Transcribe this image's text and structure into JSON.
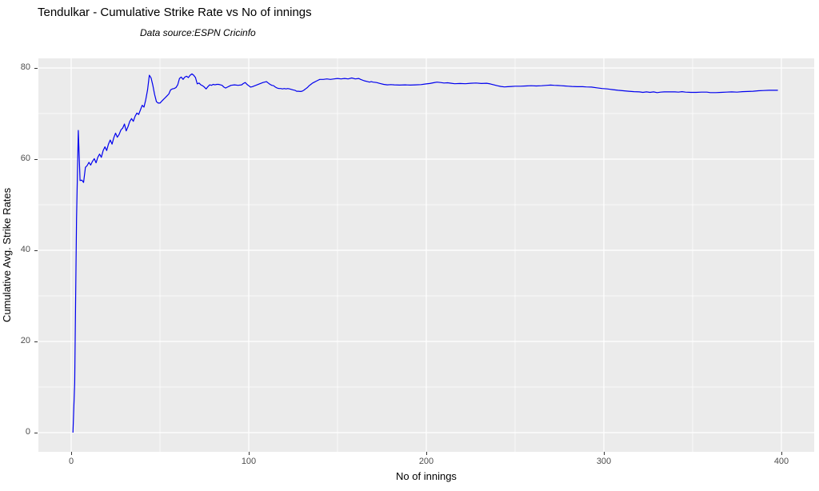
{
  "chart_data": {
    "type": "line",
    "title": "Tendulkar - Cumulative Strike Rate vs No of innings",
    "subtitle": "Data source:ESPN Cricinfo",
    "xlabel": "No of innings",
    "ylabel": "Cumulative Avg. Strike Rates",
    "xlim": [
      0,
      400
    ],
    "ylim": [
      0,
      80
    ],
    "x_ticks": [
      0,
      100,
      200,
      300,
      400
    ],
    "y_ticks": [
      0,
      20,
      40,
      60,
      80
    ],
    "x_minor_ticks": [
      50,
      150,
      250,
      350
    ],
    "y_minor_ticks": [
      10,
      30,
      50,
      70
    ],
    "grid": "on",
    "legend": "none",
    "colors": {
      "line": "#0000EE",
      "panel_background": "#EBEBEB",
      "gridline": "#FFFFFF",
      "tick_text": "#4D4D4D",
      "axis_title_text": "#000000",
      "title_text": "#000000"
    },
    "series": [
      {
        "name": "cumulative-strike-rate",
        "points": [
          [
            1,
            0
          ],
          [
            2,
            11
          ],
          [
            3,
            47
          ],
          [
            4,
            66.3
          ],
          [
            5,
            55.3
          ],
          [
            6,
            55.4
          ],
          [
            7,
            54.9
          ],
          [
            8,
            58.2
          ],
          [
            9,
            58.6
          ],
          [
            10,
            59.3
          ],
          [
            11,
            58.7
          ],
          [
            12,
            59.5
          ],
          [
            13,
            60.1
          ],
          [
            14,
            59.2
          ],
          [
            15,
            60.4
          ],
          [
            16,
            61.1
          ],
          [
            17,
            60.4
          ],
          [
            18,
            61.9
          ],
          [
            19,
            62.7
          ],
          [
            20,
            61.9
          ],
          [
            21,
            63.3
          ],
          [
            22,
            64.2
          ],
          [
            23,
            63.3
          ],
          [
            24,
            64.7
          ],
          [
            25,
            65.7
          ],
          [
            26,
            64.8
          ],
          [
            27,
            65.4
          ],
          [
            28,
            66.4
          ],
          [
            29,
            66.8
          ],
          [
            30,
            67.7
          ],
          [
            31,
            66.2
          ],
          [
            32,
            67.1
          ],
          [
            33,
            68.3
          ],
          [
            34,
            68.9
          ],
          [
            35,
            68.3
          ],
          [
            36,
            69.4
          ],
          [
            37,
            70.1
          ],
          [
            38,
            69.8
          ],
          [
            39,
            70.8
          ],
          [
            40,
            71.8
          ],
          [
            41,
            71.4
          ],
          [
            42,
            73.0
          ],
          [
            43,
            75.2
          ],
          [
            44,
            78.4
          ],
          [
            45,
            77.8
          ],
          [
            46,
            76.2
          ],
          [
            47,
            74.2
          ],
          [
            48,
            72.6
          ],
          [
            49,
            72.3
          ],
          [
            50,
            72.3
          ],
          [
            51,
            72.7
          ],
          [
            52,
            73.1
          ],
          [
            53,
            73.5
          ],
          [
            54,
            73.9
          ],
          [
            55,
            74.3
          ],
          [
            56,
            75.2
          ],
          [
            57,
            75.4
          ],
          [
            58,
            75.5
          ],
          [
            59,
            75.7
          ],
          [
            60,
            76.3
          ],
          [
            61,
            77.7
          ],
          [
            62,
            78.0
          ],
          [
            63,
            77.5
          ],
          [
            64,
            78.0
          ],
          [
            65,
            78.2
          ],
          [
            66,
            77.9
          ],
          [
            67,
            78.4
          ],
          [
            68,
            78.7
          ],
          [
            69,
            78.4
          ],
          [
            70,
            77.9
          ],
          [
            71,
            76.5
          ],
          [
            72,
            76.7
          ],
          [
            73,
            76.3
          ],
          [
            74,
            76.1
          ],
          [
            75,
            75.8
          ],
          [
            76,
            75.4
          ],
          [
            77,
            75.9
          ],
          [
            78,
            76.3
          ],
          [
            79,
            76.2
          ],
          [
            80,
            76.4
          ],
          [
            81,
            76.3
          ],
          [
            82,
            76.4
          ],
          [
            83,
            76.4
          ],
          [
            84,
            76.3
          ],
          [
            85,
            76.2
          ],
          [
            86,
            75.8
          ],
          [
            87,
            75.6
          ],
          [
            88,
            75.8
          ],
          [
            89,
            76.0
          ],
          [
            90,
            76.2
          ],
          [
            92,
            76.3
          ],
          [
            94,
            76.2
          ],
          [
            96,
            76.3
          ],
          [
            97,
            76.6
          ],
          [
            98,
            76.8
          ],
          [
            99,
            76.4
          ],
          [
            100,
            76.1
          ],
          [
            101,
            75.8
          ],
          [
            102,
            75.9
          ],
          [
            104,
            76.2
          ],
          [
            106,
            76.5
          ],
          [
            108,
            76.8
          ],
          [
            110,
            77.0
          ],
          [
            111,
            76.7
          ],
          [
            112,
            76.4
          ],
          [
            113,
            76.2
          ],
          [
            114,
            76.1
          ],
          [
            115,
            75.8
          ],
          [
            116,
            75.6
          ],
          [
            117,
            75.5
          ],
          [
            118,
            75.5
          ],
          [
            119,
            75.4
          ],
          [
            120,
            75.5
          ],
          [
            121,
            75.4
          ],
          [
            122,
            75.5
          ],
          [
            123,
            75.4
          ],
          [
            124,
            75.3
          ],
          [
            125,
            75.2
          ],
          [
            126,
            75.1
          ],
          [
            127,
            74.9
          ],
          [
            128,
            74.9
          ],
          [
            129,
            74.85
          ],
          [
            130,
            74.9
          ],
          [
            131,
            75.1
          ],
          [
            132,
            75.4
          ],
          [
            133,
            75.7
          ],
          [
            134,
            76.1
          ],
          [
            135,
            76.4
          ],
          [
            136,
            76.7
          ],
          [
            137,
            76.9
          ],
          [
            138,
            77.1
          ],
          [
            139,
            77.3
          ],
          [
            140,
            77.5
          ],
          [
            142,
            77.5
          ],
          [
            144,
            77.6
          ],
          [
            146,
            77.5
          ],
          [
            148,
            77.6
          ],
          [
            150,
            77.7
          ],
          [
            152,
            77.6
          ],
          [
            154,
            77.7
          ],
          [
            156,
            77.6
          ],
          [
            158,
            77.8
          ],
          [
            160,
            77.6
          ],
          [
            162,
            77.7
          ],
          [
            163,
            77.5
          ],
          [
            165,
            77.2
          ],
          [
            167,
            77.0
          ],
          [
            168,
            76.9
          ],
          [
            169,
            77.0
          ],
          [
            170,
            76.9
          ],
          [
            172,
            76.8
          ],
          [
            174,
            76.6
          ],
          [
            176,
            76.4
          ],
          [
            178,
            76.3
          ],
          [
            180,
            76.35
          ],
          [
            182,
            76.3
          ],
          [
            185,
            76.25
          ],
          [
            188,
            76.3
          ],
          [
            191,
            76.25
          ],
          [
            194,
            76.3
          ],
          [
            197,
            76.35
          ],
          [
            200,
            76.5
          ],
          [
            202,
            76.6
          ],
          [
            204,
            76.75
          ],
          [
            206,
            76.9
          ],
          [
            208,
            76.8
          ],
          [
            210,
            76.7
          ],
          [
            212,
            76.75
          ],
          [
            214,
            76.65
          ],
          [
            216,
            76.55
          ],
          [
            219,
            76.6
          ],
          [
            222,
            76.55
          ],
          [
            225,
            76.65
          ],
          [
            228,
            76.7
          ],
          [
            231,
            76.6
          ],
          [
            234,
            76.65
          ],
          [
            236,
            76.5
          ],
          [
            238,
            76.3
          ],
          [
            240,
            76.1
          ],
          [
            242,
            75.95
          ],
          [
            244,
            75.85
          ],
          [
            246,
            75.9
          ],
          [
            248,
            75.95
          ],
          [
            250,
            76.0
          ],
          [
            253,
            76.0
          ],
          [
            256,
            76.05
          ],
          [
            259,
            76.1
          ],
          [
            262,
            76.05
          ],
          [
            265,
            76.1
          ],
          [
            268,
            76.2
          ],
          [
            270,
            76.25
          ],
          [
            272,
            76.2
          ],
          [
            274,
            76.15
          ],
          [
            276,
            76.1
          ],
          [
            278,
            76.05
          ],
          [
            280,
            76.0
          ],
          [
            282,
            75.95
          ],
          [
            285,
            75.9
          ],
          [
            288,
            75.9
          ],
          [
            290,
            75.85
          ],
          [
            293,
            75.8
          ],
          [
            296,
            75.65
          ],
          [
            299,
            75.5
          ],
          [
            302,
            75.4
          ],
          [
            305,
            75.25
          ],
          [
            308,
            75.1
          ],
          [
            311,
            75.0
          ],
          [
            314,
            74.9
          ],
          [
            317,
            74.8
          ],
          [
            320,
            74.75
          ],
          [
            322,
            74.65
          ],
          [
            324,
            74.75
          ],
          [
            326,
            74.65
          ],
          [
            328,
            74.75
          ],
          [
            330,
            74.6
          ],
          [
            332,
            74.7
          ],
          [
            334,
            74.75
          ],
          [
            337,
            74.75
          ],
          [
            340,
            74.75
          ],
          [
            342,
            74.7
          ],
          [
            344,
            74.8
          ],
          [
            346,
            74.7
          ],
          [
            349,
            74.65
          ],
          [
            352,
            74.65
          ],
          [
            355,
            74.7
          ],
          [
            358,
            74.7
          ],
          [
            360,
            74.6
          ],
          [
            363,
            74.6
          ],
          [
            366,
            74.65
          ],
          [
            369,
            74.7
          ],
          [
            372,
            74.75
          ],
          [
            375,
            74.7
          ],
          [
            378,
            74.8
          ],
          [
            381,
            74.85
          ],
          [
            384,
            74.9
          ],
          [
            387,
            75.0
          ],
          [
            390,
            75.05
          ],
          [
            393,
            75.1
          ],
          [
            396,
            75.1
          ],
          [
            398,
            75.1
          ]
        ]
      }
    ]
  }
}
